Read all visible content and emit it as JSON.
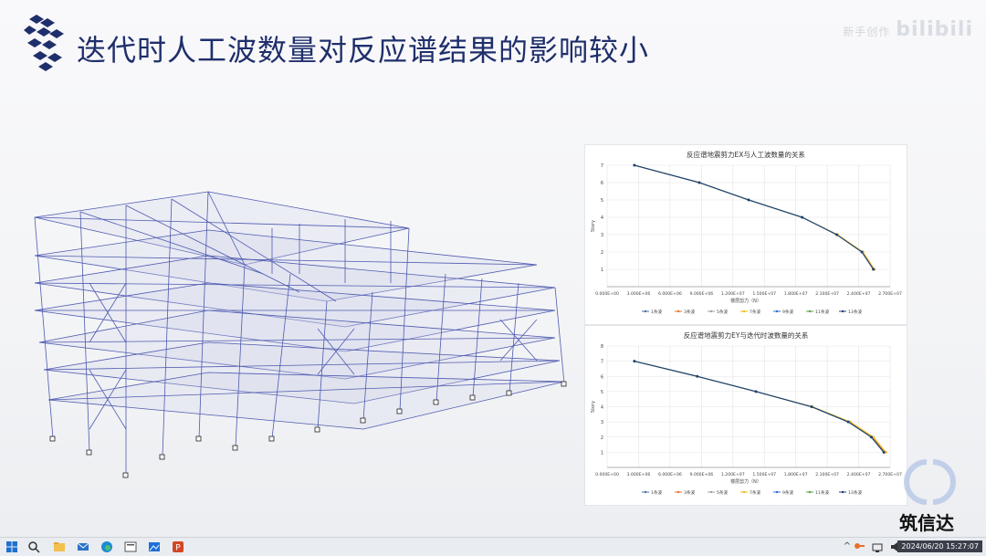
{
  "slide": {
    "title": "迭代时人工波数量对反应谱结果的影响较小",
    "watermark_text": "bilibili",
    "watermark_small": "新手创作"
  },
  "brand": {
    "text": "筑信达"
  },
  "colors": {
    "title": "#1f2f6b",
    "accent": "#1f3a8a",
    "frame": "#3d4aa8"
  },
  "charts": [
    {
      "title": "反应谱地震剪力EX与人工波数量的关系",
      "ylabel": "Story",
      "xlabel": "楼层剪力（N）",
      "xticks": [
        "0.000E+00",
        "3.000E+06",
        "6.000E+06",
        "9.000E+06",
        "1.200E+07",
        "1.500E+07",
        "1.800E+07",
        "2.100E+07",
        "2.400E+07",
        "2.700E+07"
      ],
      "yticks": [
        "1",
        "2",
        "3",
        "4",
        "5",
        "6",
        "7"
      ],
      "legend": [
        "1条波",
        "3条波",
        "5条波",
        "7条波",
        "9条波",
        "11条波",
        "13条波"
      ]
    },
    {
      "title": "反应谱地震剪力EY与迭代时波数量的关系",
      "ylabel": "Story",
      "xlabel": "楼层剪力（N）",
      "xticks": [
        "0.000E+00",
        "3.000E+06",
        "6.000E+06",
        "9.000E+06",
        "1.200E+07",
        "1.500E+07",
        "1.800E+07",
        "2.100E+07",
        "2.400E+07",
        "2.700E+07"
      ],
      "yticks": [
        "1",
        "2",
        "3",
        "4",
        "5",
        "6",
        "7",
        "8"
      ],
      "legend": [
        "1条波",
        "3条波",
        "5条波",
        "7条波",
        "9条波",
        "11条波",
        "13条波"
      ]
    }
  ],
  "chart_data": [
    {
      "type": "line",
      "title": "反应谱地震剪力EX与人工波数量的关系",
      "xlabel": "楼层剪力（N）",
      "ylabel": "Story",
      "xlim": [
        0,
        27000000
      ],
      "ylim": [
        0,
        7
      ],
      "grid": true,
      "legend_position": "bottom",
      "series": [
        {
          "name": "1条波",
          "color": "#4a6fa5",
          "x": [
            2600000.0,
            8800000.0,
            13500000.0,
            18600000.0,
            21900000.0,
            24300000.0,
            25400000.0
          ],
          "y": [
            7,
            6,
            5,
            4,
            3,
            2,
            1
          ]
        },
        {
          "name": "3条波",
          "color": "#e8702a",
          "x": [
            2600000.0,
            8800000.0,
            13500000.0,
            18600000.0,
            21900000.0,
            24400000.0,
            25500000.0
          ],
          "y": [
            7,
            6,
            5,
            4,
            3,
            2,
            1
          ]
        },
        {
          "name": "5条波",
          "color": "#9aa0a6",
          "x": [
            2600000.0,
            8800000.0,
            13500000.0,
            18600000.0,
            21900000.0,
            24300000.0,
            25400000.0
          ],
          "y": [
            7,
            6,
            5,
            4,
            3,
            2,
            1
          ]
        },
        {
          "name": "7条波",
          "color": "#f2b90f",
          "x": [
            2600000.0,
            8800000.0,
            13500000.0,
            18600000.0,
            22000000.0,
            24400000.0,
            25500000.0
          ],
          "y": [
            7,
            6,
            5,
            4,
            3,
            2,
            1
          ]
        },
        {
          "name": "9条波",
          "color": "#2f6fd6",
          "x": [
            2600000.0,
            8800000.0,
            13500000.0,
            18600000.0,
            21900000.0,
            24300000.0,
            25400000.0
          ],
          "y": [
            7,
            6,
            5,
            4,
            3,
            2,
            1
          ]
        },
        {
          "name": "11条波",
          "color": "#5aa041",
          "x": [
            2600000.0,
            8800000.0,
            13500000.0,
            18600000.0,
            21900000.0,
            24300000.0,
            25400000.0
          ],
          "y": [
            7,
            6,
            5,
            4,
            3,
            2,
            1
          ]
        },
        {
          "name": "13条波",
          "color": "#1e3f7a",
          "x": [
            2600000.0,
            8800000.0,
            13500000.0,
            18600000.0,
            21900000.0,
            24300000.0,
            25400000.0
          ],
          "y": [
            7,
            6,
            5,
            4,
            3,
            2,
            1
          ]
        }
      ]
    },
    {
      "type": "line",
      "title": "反应谱地震剪力EY与迭代时波数量的关系",
      "xlabel": "楼层剪力（N）",
      "ylabel": "Story",
      "xlim": [
        0,
        27000000
      ],
      "ylim": [
        0,
        8
      ],
      "grid": true,
      "legend_position": "bottom",
      "series": [
        {
          "name": "1条波",
          "color": "#4a6fa5",
          "x": [
            2600000.0,
            8600000.0,
            14200000.0,
            19500000.0,
            23000000.0,
            25200000.0,
            26400000.0
          ],
          "y": [
            7,
            6,
            5,
            4,
            3,
            2,
            1
          ]
        },
        {
          "name": "3条波",
          "color": "#e8702a",
          "x": [
            2600000.0,
            8600000.0,
            14200000.0,
            19500000.0,
            23100000.0,
            25300000.0,
            26500000.0
          ],
          "y": [
            7,
            6,
            5,
            4,
            3,
            2,
            1
          ]
        },
        {
          "name": "5条波",
          "color": "#9aa0a6",
          "x": [
            2600000.0,
            8600000.0,
            14200000.0,
            19500000.0,
            23000000.0,
            25200000.0,
            26400000.0
          ],
          "y": [
            7,
            6,
            5,
            4,
            3,
            2,
            1
          ]
        },
        {
          "name": "7条波",
          "color": "#f2b90f",
          "x": [
            2600000.0,
            8600000.0,
            14200000.0,
            19600000.0,
            23200000.0,
            25400000.0,
            26600000.0
          ],
          "y": [
            7,
            6,
            5,
            4,
            3,
            2,
            1
          ]
        },
        {
          "name": "9条波",
          "color": "#2f6fd6",
          "x": [
            2600000.0,
            8600000.0,
            14200000.0,
            19500000.0,
            23000000.0,
            25200000.0,
            26400000.0
          ],
          "y": [
            7,
            6,
            5,
            4,
            3,
            2,
            1
          ]
        },
        {
          "name": "11条波",
          "color": "#5aa041",
          "x": [
            2600000.0,
            8600000.0,
            14200000.0,
            19500000.0,
            23000000.0,
            25200000.0,
            26400000.0
          ],
          "y": [
            7,
            6,
            5,
            4,
            3,
            2,
            1
          ]
        },
        {
          "name": "13条波",
          "color": "#1e3f7a",
          "x": [
            2600000.0,
            8600000.0,
            14200000.0,
            19500000.0,
            23000000.0,
            25200000.0,
            26400000.0
          ],
          "y": [
            7,
            6,
            5,
            4,
            3,
            2,
            1
          ]
        }
      ]
    }
  ],
  "taskbar": {
    "clock": "2024/06/20 15:27:07",
    "icons": [
      "windows-icon",
      "search-icon",
      "file-explorer-icon",
      "mail-icon",
      "edge-icon",
      "presentation-icon",
      "photos-icon",
      "powerpoint-icon"
    ]
  }
}
